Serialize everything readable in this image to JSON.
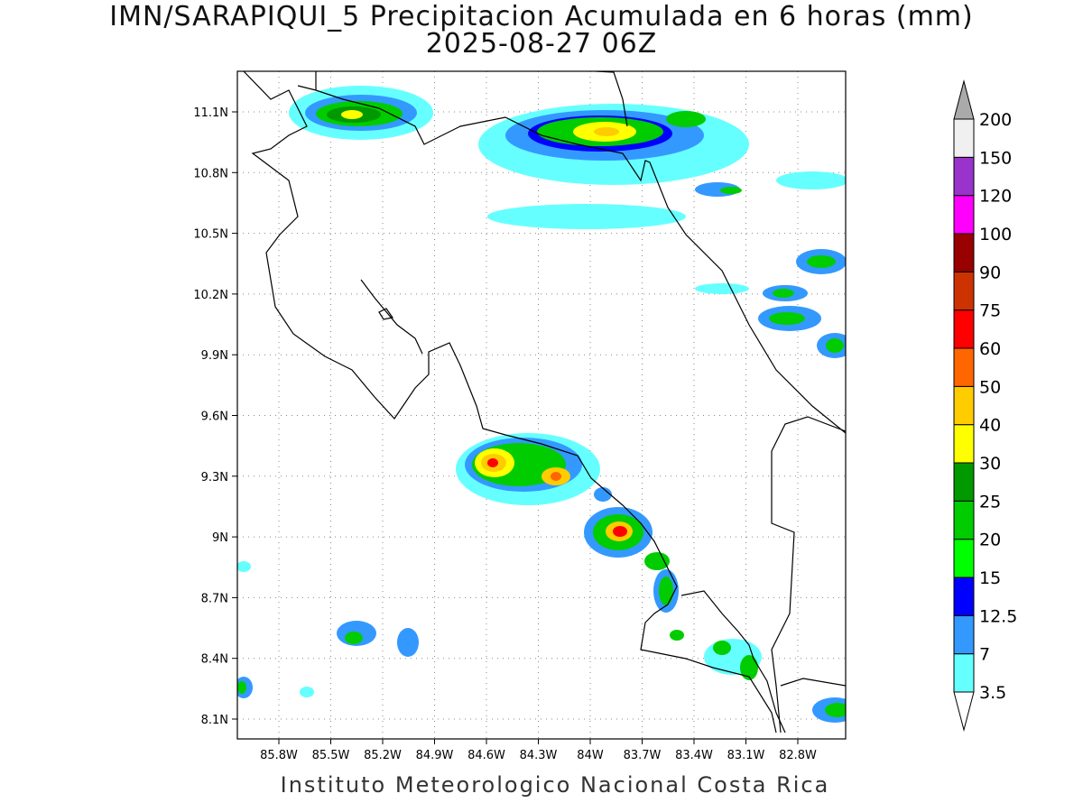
{
  "title": {
    "line1": "IMN/SARAPIQUI_5 Precipitacion Acumulada en 6 horas (mm)",
    "line2": "2025-08-27 06Z"
  },
  "credit": "Instituto Meteorologico Nacional Costa Rica",
  "map": {
    "lon_ticks": [
      {
        "value": -85.8,
        "label": "85.8W"
      },
      {
        "value": -85.5,
        "label": "85.5W"
      },
      {
        "value": -85.2,
        "label": "85.2W"
      },
      {
        "value": -84.9,
        "label": "84.9W"
      },
      {
        "value": -84.6,
        "label": "84.6W"
      },
      {
        "value": -84.3,
        "label": "84.3W"
      },
      {
        "value": -84.0,
        "label": "84W"
      },
      {
        "value": -83.7,
        "label": "83.7W"
      },
      {
        "value": -83.4,
        "label": "83.4W"
      },
      {
        "value": -83.1,
        "label": "83.1W"
      },
      {
        "value": -82.8,
        "label": "82.8W"
      }
    ],
    "lat_ticks": [
      {
        "value": 11.1,
        "label": "11.1N"
      },
      {
        "value": 10.8,
        "label": "10.8N"
      },
      {
        "value": 10.5,
        "label": "10.5N"
      },
      {
        "value": 10.2,
        "label": "10.2N"
      },
      {
        "value": 9.9,
        "label": "9.9N"
      },
      {
        "value": 9.6,
        "label": "9.6N"
      },
      {
        "value": 9.3,
        "label": "9.3N"
      },
      {
        "value": 9.0,
        "label": "9N"
      },
      {
        "value": 8.7,
        "label": "8.7N"
      },
      {
        "value": 8.4,
        "label": "8.4N"
      },
      {
        "value": 8.1,
        "label": "8.1N"
      }
    ]
  },
  "colorbar": {
    "levels": [
      "3.5",
      "7",
      "12.5",
      "15",
      "20",
      "25",
      "30",
      "40",
      "50",
      "60",
      "75",
      "90",
      "100",
      "120",
      "150",
      "200"
    ],
    "colors": [
      "#66ffff",
      "#3399ff",
      "#0000ff",
      "#00ff00",
      "#00cc00",
      "#009900",
      "#ffff00",
      "#ffcc00",
      "#ff6600",
      "#ff0000",
      "#cc3300",
      "#990000",
      "#ff00ff",
      "#9933cc",
      "#f0f0f0",
      "#aaaaaa"
    ]
  }
}
